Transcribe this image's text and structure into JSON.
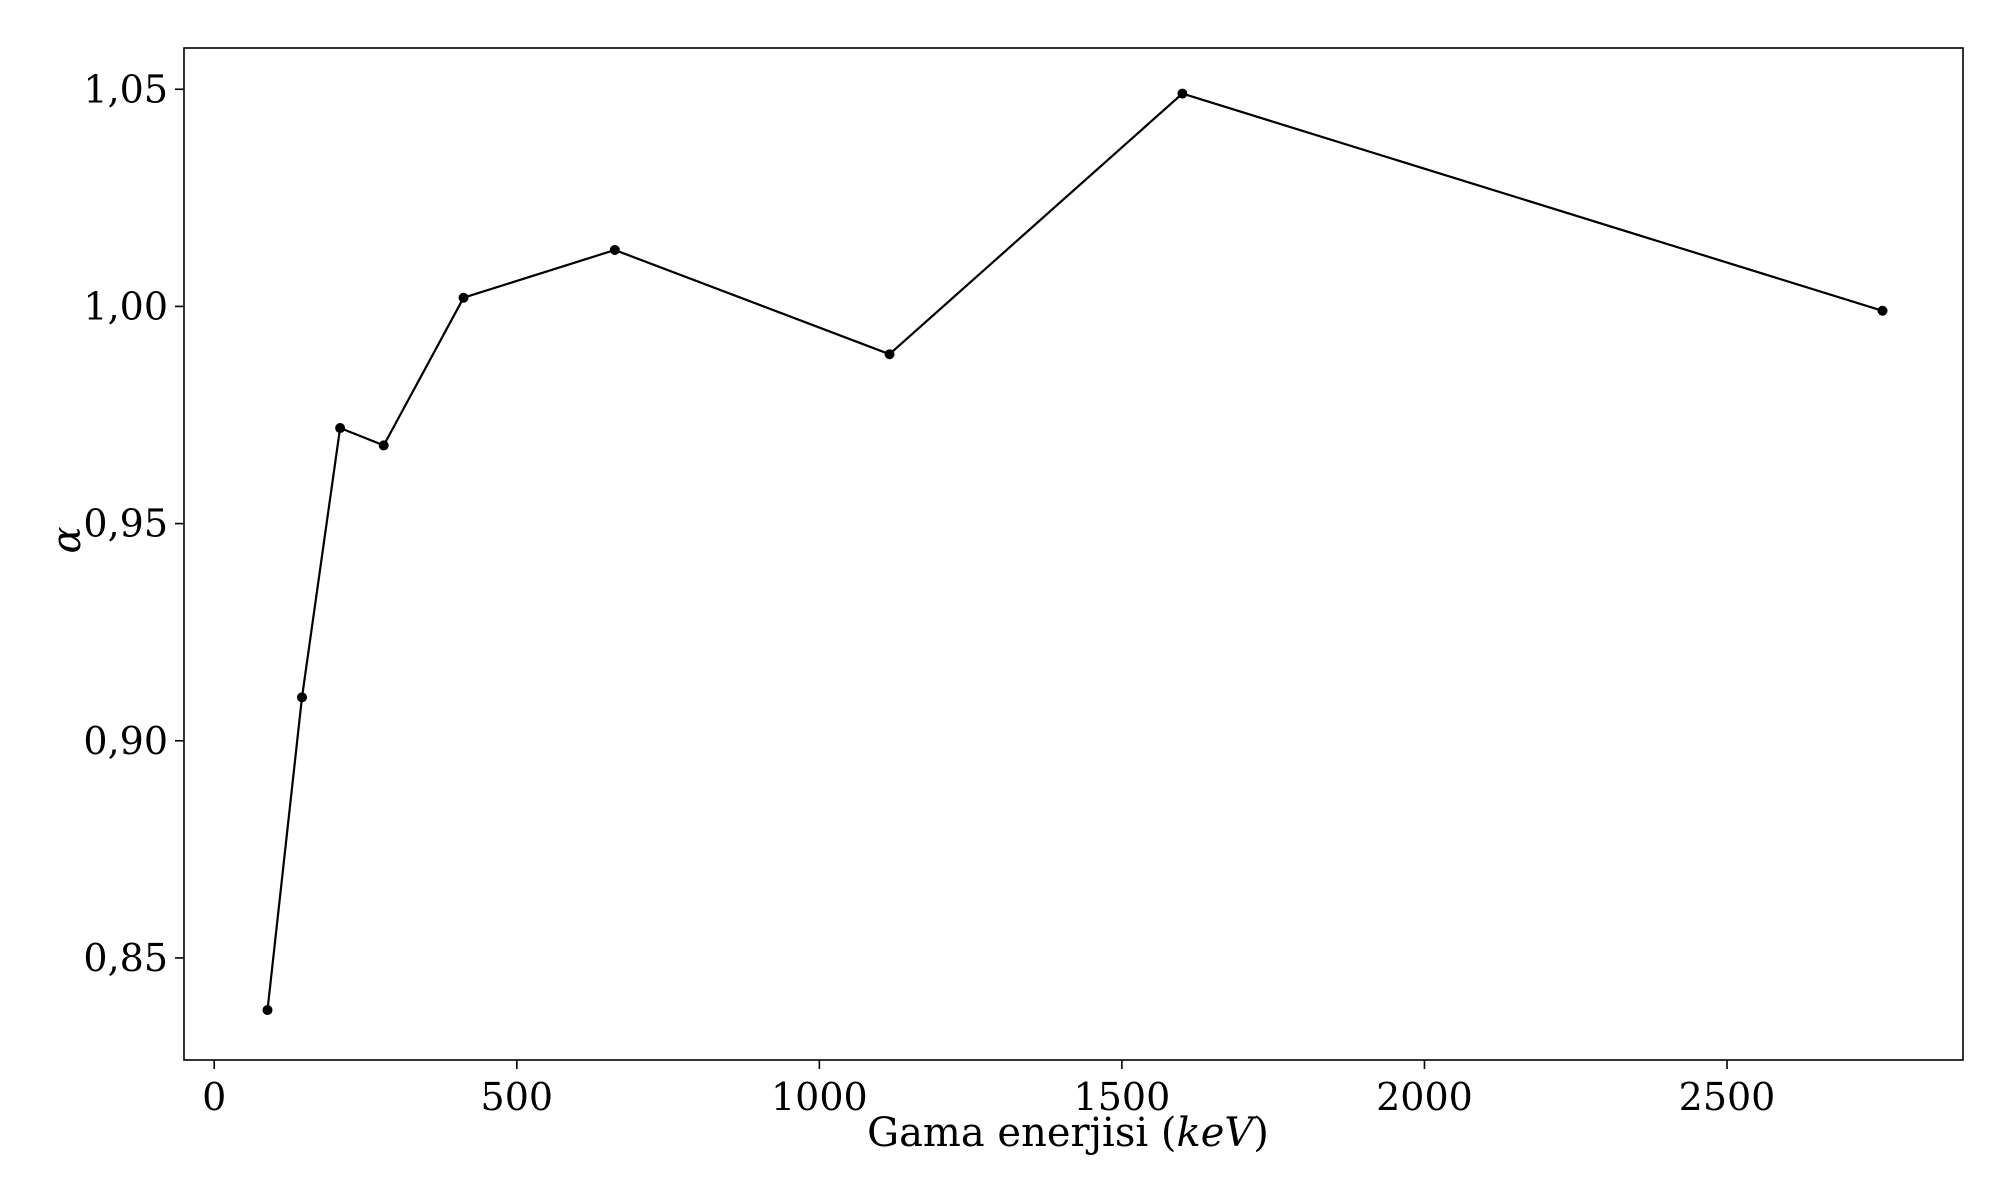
{
  "chart_data": {
    "type": "line",
    "title": "",
    "xlabel": "Gama enerjisi",
    "xlabel_unit": "keV",
    "ylabel": "α",
    "xlim": [
      -50,
      2890
    ],
    "ylim": [
      0.8265,
      1.0595
    ],
    "xticks": [
      0,
      500,
      1000,
      1500,
      2000,
      2500
    ],
    "xtick_labels": [
      "0",
      "500",
      "1000",
      "1500",
      "2000",
      "2500"
    ],
    "yticks": [
      0.85,
      0.9,
      0.95,
      1.0,
      1.05
    ],
    "ytick_labels": [
      "0,85",
      "0,90",
      "0,95",
      "1,00",
      "1,05"
    ],
    "grid": false,
    "series": [
      {
        "color": "#000000",
        "marker": "circle",
        "x": [
          88,
          145,
          208,
          280,
          412,
          662,
          1116,
          1600,
          2757
        ],
        "y": [
          0.838,
          0.91,
          0.972,
          0.968,
          1.002,
          1.013,
          0.989,
          1.049,
          0.999
        ]
      }
    ]
  }
}
